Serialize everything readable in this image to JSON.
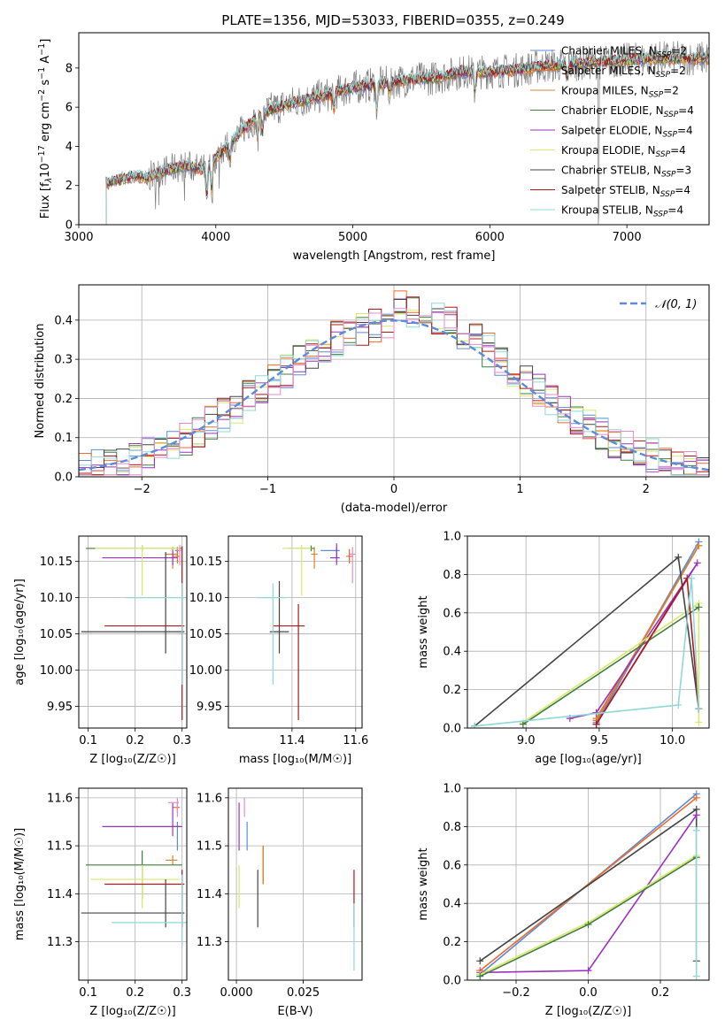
{
  "figure": {
    "title": "PLATE=1356, MJD=53033, FIBERID=0355, z=0.249"
  },
  "colors": {
    "Chabrier MILES": "#5b8bd9",
    "Salpeter MILES": "#ef6b2b",
    "Kroupa MILES": "#d4842e",
    "Chabrier ELODIE": "#3f7d3f",
    "Salpeter ELODIE": "#9933bb",
    "Kroupa ELODIE": "#d8e868",
    "Chabrier STELIB": "#444444",
    "Salpeter STELIB": "#b01818",
    "Kroupa STELIB": "#8fd8d8",
    "pink": "#e68ad0"
  },
  "chart_data": [
    {
      "id": "spectrum",
      "type": "line",
      "title": "PLATE=1356, MJD=53033, FIBERID=0355, z=0.249",
      "xlabel": "wavelength [Angstrom, rest frame]",
      "ylabel_parts": [
        "Flux [f",
        "λ",
        "10",
        "−17",
        " erg cm",
        "−2",
        " s",
        "−1",
        " A",
        "−1",
        "]"
      ],
      "xlim": [
        3000,
        7600
      ],
      "ylim": [
        0,
        9.8
      ],
      "xticks": [
        "3000",
        "4000",
        "5000",
        "6000",
        "7000"
      ],
      "yticks": [
        "0",
        "2",
        "4",
        "6",
        "8"
      ],
      "legend": [
        {
          "label": "Chabrier MILES, N",
          "sub": "SSP",
          "suffix": "=2"
        },
        {
          "label": "Salpeter MILES, N",
          "sub": "SSP",
          "suffix": "=2"
        },
        {
          "label": "Kroupa MILES, N",
          "sub": "SSP",
          "suffix": "=2"
        },
        {
          "label": "Chabrier ELODIE, N",
          "sub": "SSP",
          "suffix": "=4"
        },
        {
          "label": "Salpeter ELODIE, N",
          "sub": "SSP",
          "suffix": "=4"
        },
        {
          "label": "Kroupa ELODIE, N",
          "sub": "SSP",
          "suffix": "=4"
        },
        {
          "label": "Chabrier STELIB, N",
          "sub": "SSP",
          "suffix": "=3"
        },
        {
          "label": "Salpeter STELIB, N",
          "sub": "SSP",
          "suffix": "=4"
        },
        {
          "label": "Kroupa STELIB, N",
          "sub": "SSP",
          "suffix": "=4"
        }
      ],
      "legend_placement": "top-right",
      "continuum_x": [
        3200,
        3300,
        3400,
        3500,
        3600,
        3700,
        3800,
        3900,
        4000,
        4200,
        4400,
        4600,
        4800,
        5000,
        5200,
        5400,
        5600,
        5800,
        6000,
        6200,
        6400,
        6600,
        6800,
        7000,
        7200,
        7400,
        7600
      ],
      "continuum_y": [
        2.1,
        2.3,
        2.5,
        2.4,
        2.7,
        2.9,
        3.0,
        2.8,
        3.4,
        4.9,
        5.9,
        6.3,
        6.6,
        7.0,
        7.2,
        7.4,
        7.5,
        7.8,
        7.8,
        7.9,
        8.1,
        8.2,
        8.3,
        8.4,
        8.5,
        8.5,
        8.5
      ],
      "spectrum_start": 3200,
      "spectrum_end": 7600
    },
    {
      "id": "residuals",
      "type": "histogram",
      "xlabel": "(data-model)/error",
      "ylabel": "Normed distribution",
      "xlim": [
        -2.5,
        2.5
      ],
      "ylim": [
        0,
        0.49
      ],
      "xticks": [
        "−2",
        "−1",
        "0",
        "1",
        "2"
      ],
      "yticks": [
        "0.0",
        "0.1",
        "0.2",
        "0.3",
        "0.4"
      ],
      "grid": true,
      "legend": [
        {
          "label": "𝒩(0, 1)"
        }
      ],
      "legend_placement": "top-right",
      "bin_width": 0.1,
      "model": "N(0,1)"
    },
    {
      "id": "age-vs-Z",
      "type": "errorbar",
      "xlabel": "Z [log₁₀(Z/Z☉)]",
      "ylabel": "age  [log₁₀(age/yr)]",
      "xlim": [
        0.08,
        0.31
      ],
      "ylim": [
        9.92,
        10.185
      ],
      "xticks": [
        "0.1",
        "0.2",
        "0.3"
      ],
      "yticks": [
        "9.95",
        "10.00",
        "10.05",
        "10.10",
        "10.15"
      ],
      "grid": true,
      "points": [
        {
          "series": "Chabrier MILES",
          "x": 0.29,
          "y": 10.165,
          "xerr": [
            0.005,
            0.005
          ],
          "yerr": [
            0.01,
            0.005
          ]
        },
        {
          "series": "Salpeter MILES",
          "x": 0.29,
          "y": 10.157,
          "xerr": [
            0.01,
            0.005
          ],
          "yerr": [
            0.01,
            0.01
          ]
        },
        {
          "series": "Kroupa MILES",
          "x": 0.28,
          "y": 10.16,
          "xerr": [
            0.015,
            0.01
          ],
          "yerr": [
            0.02,
            0.01
          ]
        },
        {
          "series": "Chabrier ELODIE",
          "x": 0.215,
          "y": 10.168,
          "xerr": [
            0.12,
            0.085
          ],
          "yerr": [
            0.004,
            0.004
          ]
        },
        {
          "series": "Salpeter ELODIE",
          "x": 0.28,
          "y": 10.155,
          "xerr": [
            0.15,
            0.01
          ],
          "yerr": [
            0.01,
            0.01
          ]
        },
        {
          "series": "Kroupa ELODIE",
          "x": 0.215,
          "y": 10.168,
          "xerr": [
            0.1,
            0.08
          ],
          "yerr": [
            0.065,
            0.005
          ]
        },
        {
          "series": "Chabrier STELIB",
          "x": 0.265,
          "y": 10.053,
          "xerr": [
            0.18,
            0.04
          ],
          "yerr": [
            0.03,
            0.11
          ]
        },
        {
          "series": "Salpeter STELIB",
          "x": 0.3,
          "y": 10.061,
          "xerr": [
            0.165,
            0.005
          ],
          "yerr": [
            0.13,
            0.11
          ]
        },
        {
          "series": "Kroupa STELIB",
          "x": 0.3,
          "y": 10.1,
          "xerr": [
            0.12,
            0.01
          ],
          "yerr": [
            0.12,
            0.02
          ]
        },
        {
          "series": "pink",
          "x": 0.295,
          "y": 10.165,
          "xerr": [
            0.005,
            0.003
          ],
          "yerr": [
            0.02,
            0.008
          ]
        }
      ]
    },
    {
      "id": "age-vs-mass",
      "type": "errorbar",
      "xlabel": "mass [log₁₀(M/M☉)]",
      "ylabel": "",
      "xlim": [
        11.2,
        11.62
      ],
      "ylim": [
        9.92,
        10.185
      ],
      "xticks": [
        "11.4",
        "11.6"
      ],
      "yticks": [
        "9.95",
        "10.00",
        "10.05",
        "10.10",
        "10.15"
      ],
      "grid": true,
      "points": [
        {
          "series": "Chabrier MILES",
          "x": 11.54,
          "y": 10.165,
          "xerr": [
            0.05,
            0.01
          ],
          "yerr": [
            0.01,
            0.005
          ]
        },
        {
          "series": "Salpeter MILES",
          "x": 11.58,
          "y": 10.157,
          "xerr": [
            0.01,
            0.01
          ],
          "yerr": [
            0.01,
            0.01
          ]
        },
        {
          "series": "Kroupa MILES",
          "x": 11.47,
          "y": 10.16,
          "xerr": [
            0.01,
            0.01
          ],
          "yerr": [
            0.02,
            0.01
          ]
        },
        {
          "series": "Chabrier ELODIE",
          "x": 11.46,
          "y": 10.168,
          "xerr": [
            0.07,
            0.01
          ],
          "yerr": [
            0.004,
            0.004
          ]
        },
        {
          "series": "Salpeter ELODIE",
          "x": 11.54,
          "y": 10.155,
          "xerr": [
            0.02,
            0.01
          ],
          "yerr": [
            0.01,
            0.02
          ]
        },
        {
          "series": "Kroupa ELODIE",
          "x": 11.43,
          "y": 10.168,
          "xerr": [
            0.06,
            0.03
          ],
          "yerr": [
            0.065,
            0.005
          ]
        },
        {
          "series": "Chabrier STELIB",
          "x": 11.36,
          "y": 10.053,
          "xerr": [
            0.03,
            0.03
          ],
          "yerr": [
            0.03,
            0.07
          ]
        },
        {
          "series": "Salpeter STELIB",
          "x": 11.42,
          "y": 10.061,
          "xerr": [
            0.08,
            0.02
          ],
          "yerr": [
            0.13,
            0.03
          ]
        },
        {
          "series": "Kroupa STELIB",
          "x": 11.34,
          "y": 10.1,
          "xerr": [
            0.05,
            0.04
          ],
          "yerr": [
            0.12,
            0.02
          ]
        },
        {
          "series": "pink",
          "x": 11.59,
          "y": 10.16,
          "xerr": [
            0.01,
            0.01
          ],
          "yerr": [
            0.04,
            0.01
          ]
        }
      ]
    },
    {
      "id": "mass-weight-vs-age",
      "type": "line",
      "xlabel": "age  [log₁₀(age/yr)]",
      "ylabel": "mass weight",
      "xlim": [
        8.6,
        10.25
      ],
      "ylim": [
        0,
        1
      ],
      "xticks": [
        "9.0",
        "9.5",
        "10.0"
      ],
      "yticks": [
        "0.0",
        "0.2",
        "0.4",
        "0.6",
        "0.8",
        "1.0"
      ],
      "grid": true,
      "series": [
        {
          "name": "Chabrier MILES",
          "x": [
            9.48,
            10.18,
            9.48
          ],
          "y": [
            0.03,
            0.97,
            0.02
          ]
        },
        {
          "name": "Salpeter MILES",
          "x": [
            9.48,
            10.18,
            9.48
          ],
          "y": [
            0.05,
            0.95,
            0.04
          ]
        },
        {
          "name": "Kroupa MILES",
          "x": [
            9.48,
            10.18
          ],
          "y": [
            0.04,
            0.95
          ]
        },
        {
          "name": "Salpeter ELODIE",
          "x": [
            9.3,
            9.48,
            10.17,
            9.48
          ],
          "y": [
            0.05,
            0.08,
            0.86,
            0.02
          ]
        },
        {
          "name": "Kroupa ELODIE",
          "x": [
            8.98,
            10.18,
            10.18
          ],
          "y": [
            0.03,
            0.65,
            0.03
          ]
        },
        {
          "name": "Chabrier ELODIE",
          "x": [
            8.98,
            10.18
          ],
          "y": [
            0.02,
            0.63
          ]
        },
        {
          "name": "Chabrier STELIB",
          "x": [
            8.65,
            10.04,
            10.18
          ],
          "y": [
            0.01,
            0.89,
            0.1
          ]
        },
        {
          "name": "Salpeter STELIB",
          "x": [
            9.48,
            10.1,
            10.18
          ],
          "y": [
            0.02,
            0.78,
            0.1
          ]
        },
        {
          "name": "Kroupa STELIB",
          "x": [
            8.65,
            10.04,
            10.13,
            10.18
          ],
          "y": [
            0.01,
            0.12,
            0.78,
            0.1
          ]
        }
      ]
    },
    {
      "id": "mass-vs-Z",
      "type": "errorbar",
      "xlabel": "Z [log₁₀(Z/Z☉)]",
      "ylabel": "mass [log₁₀(M/M☉)]",
      "xlim": [
        0.08,
        0.31
      ],
      "ylim": [
        11.22,
        11.62
      ],
      "xticks": [
        "0.1",
        "0.2",
        "0.3"
      ],
      "yticks": [
        "11.3",
        "11.4",
        "11.5",
        "11.6"
      ],
      "grid": true,
      "points": [
        {
          "series": "Chabrier MILES",
          "x": 0.29,
          "y": 11.54,
          "xerr": [
            0.01,
            0.005
          ],
          "yerr": [
            0.05,
            0.01
          ]
        },
        {
          "series": "Salpeter MILES",
          "x": 0.29,
          "y": 11.58,
          "xerr": [
            0.01,
            0.005
          ],
          "yerr": [
            0.01,
            0.01
          ]
        },
        {
          "series": "Kroupa MILES",
          "x": 0.28,
          "y": 11.47,
          "xerr": [
            0.015,
            0.01
          ],
          "yerr": [
            0.01,
            0.01
          ]
        },
        {
          "series": "Chabrier ELODIE",
          "x": 0.215,
          "y": 11.46,
          "xerr": [
            0.12,
            0.085
          ],
          "yerr": [
            0.07,
            0.03
          ]
        },
        {
          "series": "Salpeter ELODIE",
          "x": 0.28,
          "y": 11.54,
          "xerr": [
            0.15,
            0.02
          ],
          "yerr": [
            0.02,
            0.05
          ]
        },
        {
          "series": "Kroupa ELODIE",
          "x": 0.215,
          "y": 11.43,
          "xerr": [
            0.11,
            0.08
          ],
          "yerr": [
            0.06,
            0.03
          ]
        },
        {
          "series": "Chabrier STELIB",
          "x": 0.265,
          "y": 11.36,
          "xerr": [
            0.18,
            0.04
          ],
          "yerr": [
            0.03,
            0.07
          ]
        },
        {
          "series": "Salpeter STELIB",
          "x": 0.3,
          "y": 11.42,
          "xerr": [
            0.165,
            0.005
          ],
          "yerr": [
            0.09,
            0.03
          ]
        },
        {
          "series": "Kroupa STELIB",
          "x": 0.3,
          "y": 11.34,
          "xerr": [
            0.15,
            0.01
          ],
          "yerr": [
            0.05,
            0.1
          ]
        },
        {
          "series": "pink",
          "x": 0.29,
          "y": 11.59,
          "xerr": [
            0.02,
            0.003
          ],
          "yerr": [
            0.03,
            0.01
          ]
        }
      ]
    },
    {
      "id": "mass-vs-EBV",
      "type": "errorbar",
      "xlabel": "E(B-V)",
      "ylabel": "",
      "xlim": [
        -0.003,
        0.047
      ],
      "ylim": [
        11.22,
        11.62
      ],
      "xticks": [
        "0.000",
        "0.025"
      ],
      "yticks": [
        "11.3",
        "11.4",
        "11.5",
        "11.6"
      ],
      "grid": true,
      "points": [
        {
          "series": "Chabrier MILES",
          "x": 0.004,
          "y": 11.54,
          "xerr": [
            0,
            0
          ],
          "yerr": [
            0.05,
            0.01
          ]
        },
        {
          "series": "Salpeter MILES",
          "x": 0.01,
          "y": 11.47,
          "xerr": [
            0,
            0
          ],
          "yerr": [
            0.05,
            0.03
          ]
        },
        {
          "series": "Kroupa MILES",
          "x": 0.01,
          "y": 11.47,
          "xerr": [
            0,
            0
          ],
          "yerr": [
            0.05,
            0.03
          ]
        },
        {
          "series": "Salpeter ELODIE",
          "x": 0.001,
          "y": 11.54,
          "xerr": [
            0,
            0
          ],
          "yerr": [
            0.05,
            0.05
          ]
        },
        {
          "series": "Kroupa ELODIE",
          "x": 0.001,
          "y": 11.43,
          "xerr": [
            0,
            0
          ],
          "yerr": [
            0.06,
            0.03
          ]
        },
        {
          "series": "Chabrier STELIB",
          "x": 0.008,
          "y": 11.36,
          "xerr": [
            0,
            0
          ],
          "yerr": [
            0.03,
            0.09
          ]
        },
        {
          "series": "Salpeter STELIB",
          "x": 0.044,
          "y": 11.42,
          "xerr": [
            0,
            0
          ],
          "yerr": [
            0.09,
            0.03
          ]
        },
        {
          "series": "Kroupa STELIB",
          "x": 0.044,
          "y": 11.34,
          "xerr": [
            0,
            0
          ],
          "yerr": [
            0.1,
            0.04
          ]
        },
        {
          "series": "pink",
          "x": 0.003,
          "y": 11.59,
          "xerr": [
            0,
            0
          ],
          "yerr": [
            0.03,
            0.01
          ]
        }
      ]
    },
    {
      "id": "mass-weight-vs-Z",
      "type": "line",
      "xlabel": "Z [log₁₀(Z/Z☉)]",
      "ylabel": "mass weight",
      "xlim": [
        -0.335,
        0.335
      ],
      "ylim": [
        0,
        1
      ],
      "xticks": [
        "−0.2",
        "0.0",
        "0.2"
      ],
      "yticks": [
        "0.0",
        "0.2",
        "0.4",
        "0.6",
        "0.8",
        "1.0"
      ],
      "grid": true,
      "series": [
        {
          "name": "Chabrier MILES",
          "x": [
            -0.3,
            0.3
          ],
          "y": [
            0.03,
            0.97
          ]
        },
        {
          "name": "Salpeter MILES",
          "x": [
            -0.3,
            0.3
          ],
          "y": [
            0.05,
            0.95
          ]
        },
        {
          "name": "Chabrier STELIB",
          "x": [
            -0.3,
            0.3,
            0.3
          ],
          "y": [
            0.1,
            0.89,
            0.1
          ]
        },
        {
          "name": "Salpeter ELODIE",
          "x": [
            -0.3,
            0.0,
            0.3
          ],
          "y": [
            0.04,
            0.05,
            0.86
          ]
        },
        {
          "name": "Kroupa ELODIE",
          "x": [
            -0.3,
            0.0,
            0.3
          ],
          "y": [
            0.03,
            0.3,
            0.65
          ]
        },
        {
          "name": "Chabrier ELODIE",
          "x": [
            -0.3,
            0.0,
            0.3
          ],
          "y": [
            0.02,
            0.29,
            0.64
          ]
        },
        {
          "name": "Kroupa STELIB",
          "x": [
            0.3,
            0.3
          ],
          "y": [
            0.02,
            0.78
          ]
        }
      ]
    }
  ]
}
